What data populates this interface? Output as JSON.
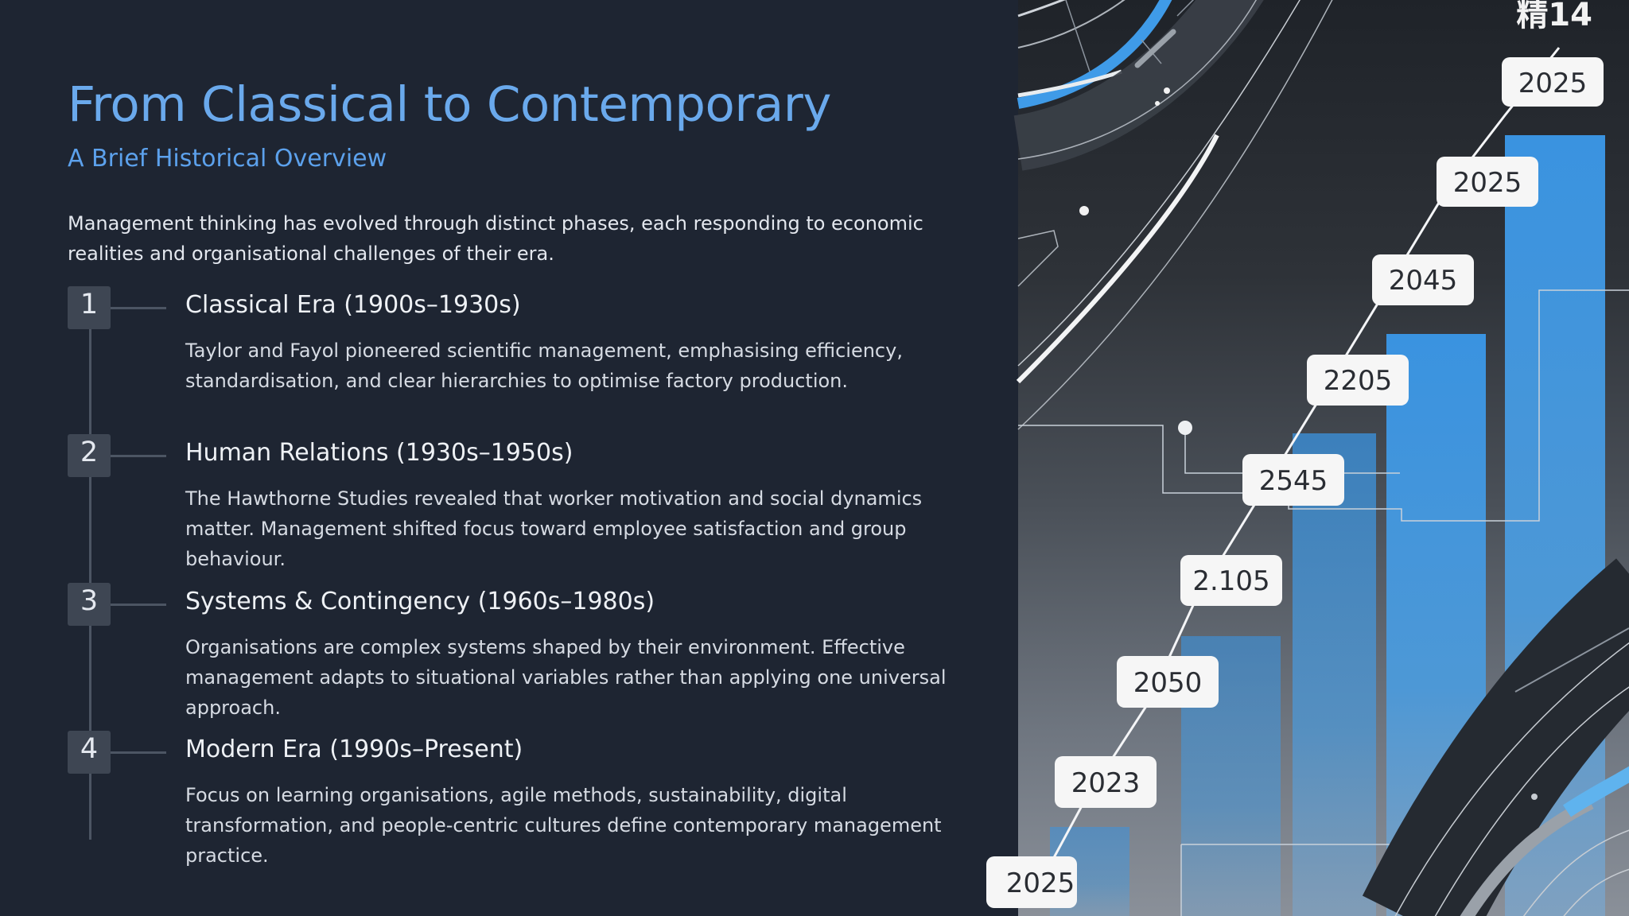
{
  "slide": {
    "title": "From Classical to Contemporary",
    "subtitle": "A Brief Historical Overview",
    "intro": "Management thinking has evolved through distinct phases, each responding to economic realities and organisational challenges of their era."
  },
  "eras": [
    {
      "number": "1",
      "title": "Classical Era (1900s–1930s)",
      "description": "Taylor and Fayol pioneered scientific management, emphasising efficiency, standardisation, and clear hierarchies to optimise factory production."
    },
    {
      "number": "2",
      "title": "Human Relations (1930s–1950s)",
      "description": "The Hawthorne Studies revealed that worker motivation and social dynamics matter. Management shifted focus toward employee satisfaction and group behaviour."
    },
    {
      "number": "3",
      "title": "Systems & Contingency (1960s–1980s)",
      "description": "Organisations are complex systems shaped by their environment. Effective management adapts to situational variables rather than applying one universal approach."
    },
    {
      "number": "4",
      "title": "Modern Era (1990s–Present)",
      "description": "Focus on learning organisations, agile methods, sustainability, digital transformation, and people-centric cultures define contemporary management practice."
    }
  ],
  "illustration": {
    "corner_text": "精14",
    "labels": [
      "2025",
      "2025",
      "2045",
      "2205",
      "2545",
      "2.105",
      "2050",
      "2023",
      "2025"
    ],
    "bar_color": "#3a93e0",
    "accent_color": "#3f9be8"
  }
}
